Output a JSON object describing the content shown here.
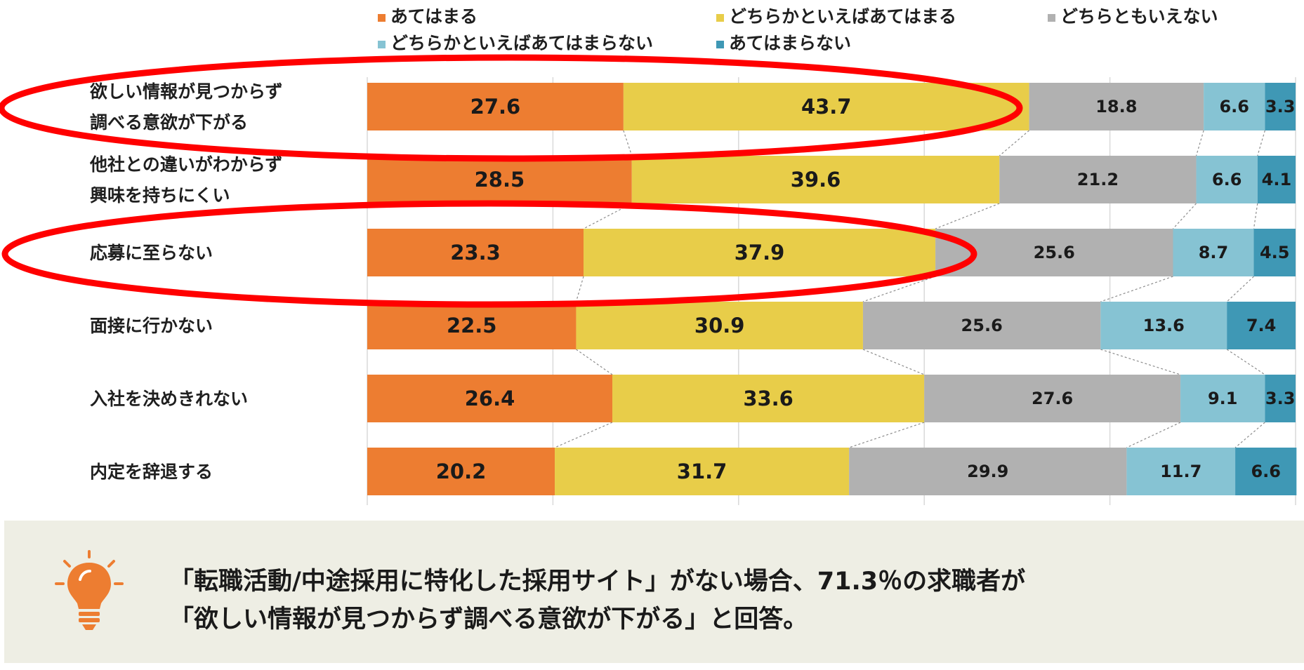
{
  "chart_data": {
    "type": "bar",
    "orientation": "horizontal",
    "stacked": true,
    "percent": true,
    "xlim": [
      0,
      100
    ],
    "grid": true,
    "legend_position": "top",
    "categories": [
      [
        "欲しい情報が見つからず",
        "調べる意欲が下がる"
      ],
      [
        "他社との違いがわからず",
        "興味を持ちにくい"
      ],
      [
        "応募に至らない"
      ],
      [
        "面接に行かない"
      ],
      [
        "入社を決めきれない"
      ],
      [
        "内定を辞退する"
      ]
    ],
    "series": [
      {
        "name": "あてはまる",
        "color": "#ed7d31",
        "values": [
          27.6,
          28.5,
          23.3,
          22.5,
          26.4,
          20.2
        ]
      },
      {
        "name": "どちらかといえばあてはまる",
        "color": "#e8cd49",
        "values": [
          43.7,
          39.6,
          37.9,
          30.9,
          33.6,
          31.7
        ]
      },
      {
        "name": "どちらともいえない",
        "color": "#b1b1b1",
        "values": [
          18.8,
          21.2,
          25.6,
          25.6,
          27.6,
          29.9
        ]
      },
      {
        "name": "どちらかといえばあてはまらない",
        "color": "#86c3d3",
        "values": [
          6.6,
          6.6,
          8.7,
          13.6,
          9.1,
          11.7
        ]
      },
      {
        "name": "あてはまらない",
        "color": "#3f98b5",
        "values": [
          3.3,
          4.1,
          4.5,
          7.4,
          3.3,
          6.6
        ]
      }
    ],
    "highlighted_categories": [
      0,
      2
    ],
    "highlight_color": "#ff0000"
  },
  "note": {
    "lines": [
      "「転職活動/中途採用に特化した採用サイト」がない場合、71.3％の求職者が",
      "「欲しい情報が見つからず調べる意欲が下がる」と回答。"
    ],
    "icon": "lightbulb-icon",
    "icon_color": "#ed7d31"
  }
}
